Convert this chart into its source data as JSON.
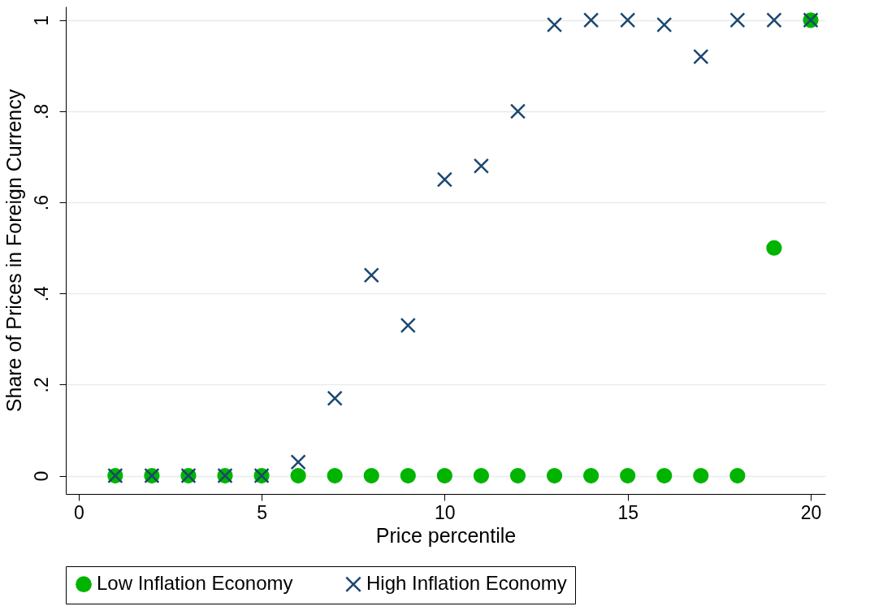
{
  "chart_data": {
    "type": "scatter",
    "xlabel": "Price percentile",
    "ylabel": "Share of Prices in Foreign Currency",
    "x": [
      1,
      2,
      3,
      4,
      5,
      6,
      7,
      8,
      9,
      10,
      11,
      12,
      13,
      14,
      15,
      16,
      17,
      18,
      19,
      20
    ],
    "series": [
      {
        "name": "Low Inflation Economy",
        "color": "#00b400",
        "marker": "circle",
        "values": [
          0,
          0,
          0,
          0,
          0,
          0,
          0,
          0,
          0,
          0,
          0,
          0,
          0,
          0,
          0,
          0,
          0,
          0,
          0.5,
          1
        ]
      },
      {
        "name": "High Inflation Economy",
        "color": "#1a476f",
        "marker": "cross",
        "values": [
          0,
          0,
          0,
          0,
          0,
          0.03,
          0.17,
          0.44,
          0.33,
          0.65,
          0.68,
          0.8,
          0.99,
          1,
          1,
          0.99,
          0.92,
          1,
          1,
          1
        ]
      }
    ],
    "xlim": [
      -0.35,
      20.4
    ],
    "xticks": [
      0,
      5,
      10,
      15,
      20
    ],
    "ylim": [
      -0.04,
      1.03
    ],
    "yticks": [
      {
        "value": 0,
        "label": "0"
      },
      {
        "value": 0.2,
        "label": ".2"
      },
      {
        "value": 0.4,
        "label": ".4"
      },
      {
        "value": 0.6,
        "label": ".6"
      },
      {
        "value": 0.8,
        "label": ".8"
      },
      {
        "value": 1,
        "label": "1"
      }
    ],
    "grid": "y",
    "legend": "bottom"
  }
}
